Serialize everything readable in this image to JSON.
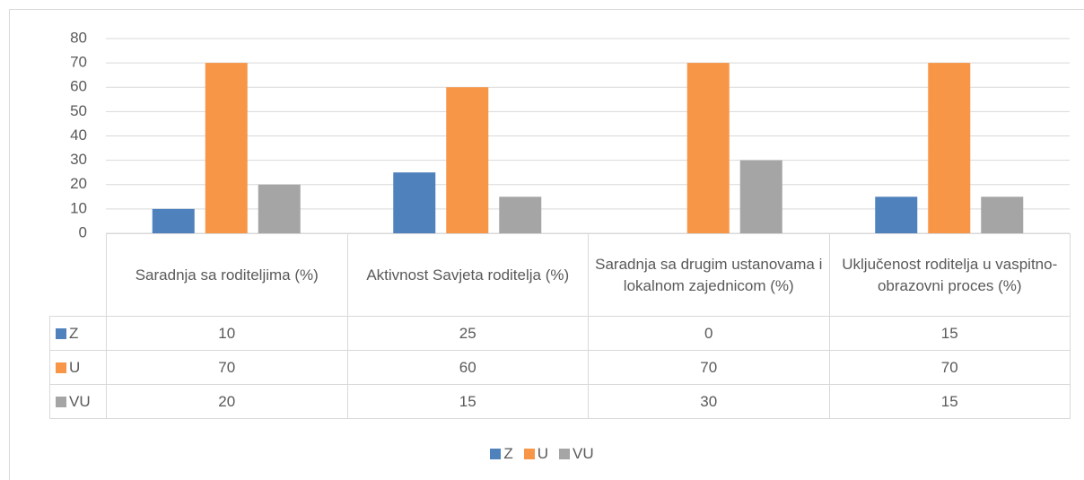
{
  "chart_data": {
    "type": "bar",
    "categories": [
      "Saradnja sa roditeljima (%)",
      "Aktivnost Savjeta roditelja (%)",
      "Saradnja sa drugim ustanovama i lokalnom zajednicom (%)",
      "Uključenost roditelja u vaspitno-obrazovni proces (%)"
    ],
    "series": [
      {
        "name": "Z",
        "color": "#4f81bd",
        "values": [
          10,
          25,
          0,
          15
        ]
      },
      {
        "name": "U",
        "color": "#f79646",
        "values": [
          70,
          60,
          70,
          70
        ]
      },
      {
        "name": "VU",
        "color": "#a5a5a5",
        "values": [
          20,
          15,
          30,
          15
        ]
      }
    ],
    "ylim": [
      0,
      80
    ],
    "yticks": [
      0,
      10,
      20,
      30,
      40,
      50,
      60,
      70,
      80
    ],
    "grid": true,
    "legend": "bottom"
  }
}
